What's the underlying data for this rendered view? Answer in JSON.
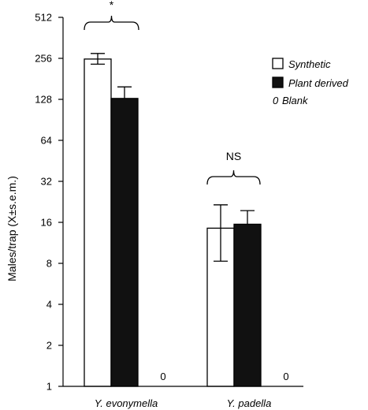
{
  "chart_data": {
    "type": "bar",
    "ylabel": "Males/trap (X±s.e.m.)",
    "yscale": "log2",
    "ylim": [
      1,
      512
    ],
    "yticks": [
      1,
      2,
      4,
      8,
      16,
      32,
      64,
      128,
      256,
      512
    ],
    "ytick_labels": [
      "1",
      "2",
      "4",
      "8",
      "16",
      "32",
      "64",
      "128",
      "256",
      "512"
    ],
    "categories": [
      "Y. evonymella",
      "Y. padella"
    ],
    "series": [
      {
        "name": "Synthetic",
        "fill": "#ffffff",
        "values": [
          253,
          14.5
        ],
        "err_low": [
          232,
          8.3
        ],
        "err_high": [
          278,
          21.5
        ]
      },
      {
        "name": "Plant derived",
        "fill": "#111111",
        "values": [
          130,
          15.5
        ],
        "err_low": [
          130,
          15.5
        ],
        "err_high": [
          158,
          19.5
        ]
      },
      {
        "name": "Blank",
        "marker": "0",
        "values": [
          0,
          0
        ],
        "value_labels": [
          "0",
          "0"
        ]
      }
    ],
    "legend": {
      "position": "top-right",
      "items": [
        {
          "marker": "white-box",
          "label": "Synthetic"
        },
        {
          "marker": "black-box",
          "label": "Plant derived"
        },
        {
          "marker": "0",
          "label": "Blank"
        }
      ]
    },
    "annotations": [
      {
        "text": "*",
        "group": 0
      },
      {
        "text": "NS",
        "group": 1
      }
    ]
  }
}
